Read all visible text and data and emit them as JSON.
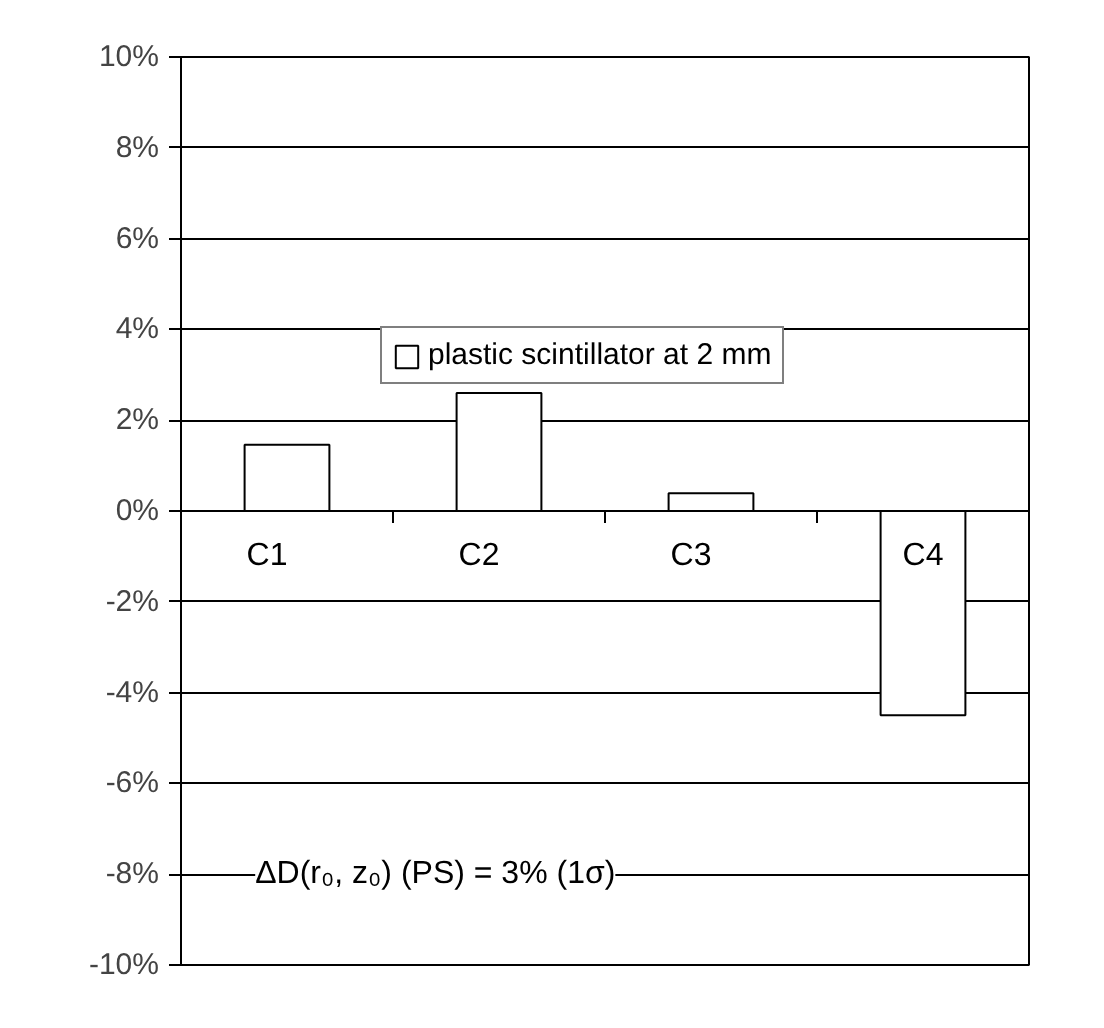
{
  "chart_data": {
    "type": "bar",
    "categories": [
      "C1",
      "C2",
      "C3",
      "C4"
    ],
    "series": [
      {
        "name": "plastic scintillator at 2 mm",
        "color": "#ffffff",
        "values": [
          1.46,
          2.6,
          0.39,
          -4.5
        ]
      }
    ],
    "ylim": [
      -10,
      10
    ],
    "yticks": [
      {
        "value": -10,
        "label": "-10%"
      },
      {
        "value": -8,
        "label": "-8%"
      },
      {
        "value": -6,
        "label": "-6%"
      },
      {
        "value": -4,
        "label": "-4%"
      },
      {
        "value": -2,
        "label": "-2%"
      },
      {
        "value": 0,
        "label": "0%"
      },
      {
        "value": 2,
        "label": "2%"
      },
      {
        "value": 4,
        "label": "4%"
      },
      {
        "value": 6,
        "label": "6%"
      },
      {
        "value": 8,
        "label": "8%"
      },
      {
        "value": 10,
        "label": "10%"
      }
    ],
    "grid": "y",
    "legend": "top right",
    "annotations": [
      "ΔD(r₀, z₀) (PS) = 3% (1σ)"
    ]
  }
}
